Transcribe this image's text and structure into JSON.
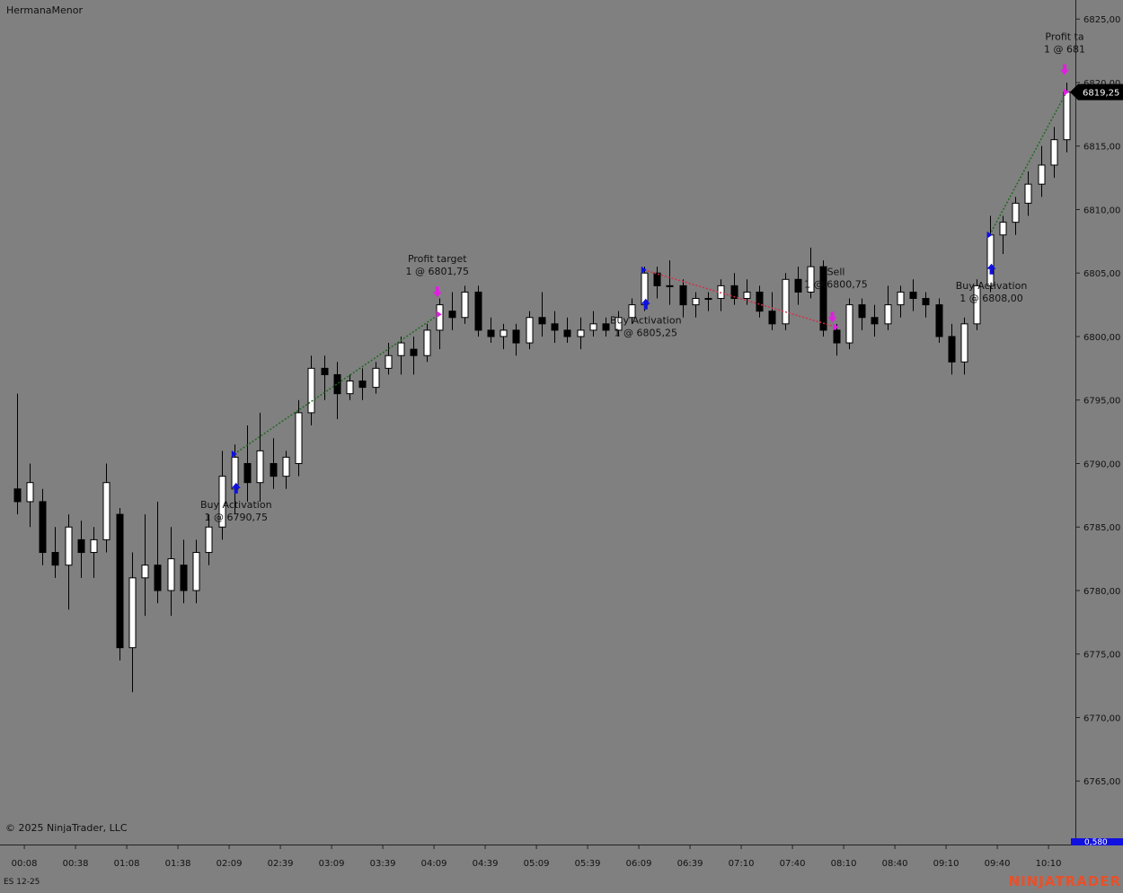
{
  "chart_data": {
    "type": "candlestick",
    "instrument_name": "HermanaMenor",
    "copyright": "© 2025 NinjaTrader, LLC",
    "contract": "ES 12-25",
    "brand": "NINJATRADER",
    "last_price": {
      "value": 6819.25,
      "label": "6819,25"
    },
    "indicator_label": "0,580",
    "up_color": "#ffffff",
    "down_color": "#000000",
    "ylim": [
      6760,
      6826.5
    ],
    "yticks": [
      {
        "value": 6765,
        "label": "6765,00"
      },
      {
        "value": 6770,
        "label": "6770,00"
      },
      {
        "value": 6775,
        "label": "6775,00"
      },
      {
        "value": 6780,
        "label": "6780,00"
      },
      {
        "value": 6785,
        "label": "6785,00"
      },
      {
        "value": 6790,
        "label": "6790,00"
      },
      {
        "value": 6795,
        "label": "6795,00"
      },
      {
        "value": 6800,
        "label": "6800,00"
      },
      {
        "value": 6805,
        "label": "6805,00"
      },
      {
        "value": 6810,
        "label": "6810,00"
      },
      {
        "value": 6815,
        "label": "6815,00"
      },
      {
        "value": 6820,
        "label": "6820,00"
      },
      {
        "value": 6825,
        "label": "6825,00"
      }
    ],
    "xlim": [
      -1.3,
      82.7
    ],
    "xticks": [
      {
        "value": 0.6,
        "label": "00:08"
      },
      {
        "value": 4.6,
        "label": "00:38"
      },
      {
        "value": 8.6,
        "label": "01:08"
      },
      {
        "value": 12.6,
        "label": "01:38"
      },
      {
        "value": 16.6,
        "label": "02:09"
      },
      {
        "value": 20.6,
        "label": "02:39"
      },
      {
        "value": 24.6,
        "label": "03:09"
      },
      {
        "value": 28.6,
        "label": "03:39"
      },
      {
        "value": 32.6,
        "label": "04:09"
      },
      {
        "value": 36.6,
        "label": "04:39"
      },
      {
        "value": 40.6,
        "label": "05:09"
      },
      {
        "value": 44.6,
        "label": "05:39"
      },
      {
        "value": 48.6,
        "label": "06:09"
      },
      {
        "value": 52.6,
        "label": "06:39"
      },
      {
        "value": 56.6,
        "label": "07:10"
      },
      {
        "value": 60.6,
        "label": "07:40"
      },
      {
        "value": 64.6,
        "label": "08:10"
      },
      {
        "value": 68.6,
        "label": "08:40"
      },
      {
        "value": 72.6,
        "label": "09:10"
      },
      {
        "value": 76.6,
        "label": "09:40"
      },
      {
        "value": 80.6,
        "label": "10:10"
      }
    ],
    "ohlc": [
      [
        6788,
        6795.5,
        6786,
        6787
      ],
      [
        6787,
        6790,
        6785,
        6788.5
      ],
      [
        6787,
        6788,
        6782,
        6783
      ],
      [
        6783,
        6785,
        6781,
        6782
      ],
      [
        6782,
        6786,
        6778.5,
        6785
      ],
      [
        6784,
        6785.5,
        6781,
        6783
      ],
      [
        6783,
        6785,
        6781,
        6784
      ],
      [
        6784,
        6790,
        6783,
        6788.5
      ],
      [
        6786,
        6786.5,
        6774.5,
        6775.5
      ],
      [
        6775.5,
        6783,
        6772,
        6781
      ],
      [
        6781,
        6786,
        6778,
        6782
      ],
      [
        6782,
        6787,
        6779,
        6780
      ],
      [
        6780,
        6785,
        6778,
        6782.5
      ],
      [
        6782,
        6784,
        6779,
        6780
      ],
      [
        6780,
        6784,
        6779,
        6783
      ],
      [
        6783,
        6786,
        6782,
        6785
      ],
      [
        6785,
        6791,
        6784,
        6789
      ],
      [
        6788,
        6791.5,
        6786,
        6790.5
      ],
      [
        6790,
        6793,
        6787,
        6788.5
      ],
      [
        6788.5,
        6794,
        6787,
        6791
      ],
      [
        6790,
        6792,
        6788,
        6789
      ],
      [
        6789,
        6791,
        6788,
        6790.5
      ],
      [
        6790,
        6795,
        6789,
        6794
      ],
      [
        6794,
        6798.5,
        6793,
        6797.5
      ],
      [
        6797.5,
        6798.5,
        6795,
        6797
      ],
      [
        6797,
        6798,
        6793.5,
        6795.5
      ],
      [
        6795.5,
        6797,
        6795,
        6796.5
      ],
      [
        6796.5,
        6797.5,
        6795,
        6796
      ],
      [
        6796,
        6798,
        6795.5,
        6797.5
      ],
      [
        6797.5,
        6799.5,
        6797,
        6798.5
      ],
      [
        6798.5,
        6800,
        6797,
        6799.5
      ],
      [
        6799,
        6800,
        6797,
        6798.5
      ],
      [
        6798.5,
        6801,
        6798,
        6800.5
      ],
      [
        6800.5,
        6803,
        6799,
        6802.5
      ],
      [
        6802,
        6803.5,
        6800.5,
        6801.5
      ],
      [
        6801.5,
        6804,
        6801,
        6803.5
      ],
      [
        6803.5,
        6804,
        6800,
        6800.5
      ],
      [
        6800.5,
        6801.5,
        6799.5,
        6800
      ],
      [
        6800,
        6801,
        6799,
        6800.5
      ],
      [
        6800.5,
        6801,
        6798.5,
        6799.5
      ],
      [
        6799.5,
        6802,
        6799,
        6801.5
      ],
      [
        6801.5,
        6803.5,
        6800,
        6801
      ],
      [
        6801,
        6802,
        6799.5,
        6800.5
      ],
      [
        6800.5,
        6801.5,
        6799.5,
        6800
      ],
      [
        6800,
        6801.5,
        6799,
        6800.5
      ],
      [
        6800.5,
        6802,
        6800,
        6801
      ],
      [
        6801,
        6801.5,
        6800,
        6800.5
      ],
      [
        6800.5,
        6802,
        6800,
        6801.5
      ],
      [
        6801.5,
        6803,
        6801,
        6802.5
      ],
      [
        6802.5,
        6805.5,
        6802,
        6805
      ],
      [
        6805,
        6805.5,
        6803,
        6804
      ],
      [
        6804,
        6806,
        6802.5,
        6804
      ],
      [
        6804,
        6804.5,
        6801.5,
        6802.5
      ],
      [
        6802.5,
        6803.5,
        6801.5,
        6803
      ],
      [
        6803,
        6803.5,
        6802,
        6803
      ],
      [
        6803,
        6804.5,
        6802,
        6804
      ],
      [
        6804,
        6805,
        6802.5,
        6803
      ],
      [
        6803,
        6804.5,
        6802.5,
        6803.5
      ],
      [
        6803.5,
        6804,
        6801.5,
        6802
      ],
      [
        6802,
        6803.5,
        6800.5,
        6801
      ],
      [
        6801,
        6805,
        6800.5,
        6804.5
      ],
      [
        6804.5,
        6805.5,
        6802.5,
        6803.5
      ],
      [
        6803.5,
        6807,
        6803,
        6805.5
      ],
      [
        6805.5,
        6806,
        6800,
        6800.5
      ],
      [
        6800.5,
        6801,
        6798.5,
        6799.5
      ],
      [
        6799.5,
        6803,
        6799,
        6802.5
      ],
      [
        6802.5,
        6803,
        6800.5,
        6801.5
      ],
      [
        6801.5,
        6802.5,
        6800,
        6801
      ],
      [
        6801,
        6804,
        6800.5,
        6802.5
      ],
      [
        6802.5,
        6804,
        6801.5,
        6803.5
      ],
      [
        6803.5,
        6804.5,
        6802,
        6803
      ],
      [
        6803,
        6803.5,
        6801.5,
        6802.5
      ],
      [
        6802.5,
        6803,
        6799.5,
        6800
      ],
      [
        6800,
        6801,
        6797,
        6798
      ],
      [
        6798,
        6801.5,
        6797,
        6801
      ],
      [
        6801,
        6804.5,
        6800.5,
        6804
      ],
      [
        6804,
        6809.5,
        6803.5,
        6808
      ],
      [
        6808,
        6809.5,
        6806.5,
        6809
      ],
      [
        6809,
        6811,
        6808,
        6810.5
      ],
      [
        6810.5,
        6813,
        6809.5,
        6812
      ],
      [
        6812,
        6815,
        6811,
        6813.5
      ],
      [
        6813.5,
        6816.5,
        6812.5,
        6815.5
      ],
      [
        6815.5,
        6820,
        6814.5,
        6819.25
      ]
    ],
    "trades": [
      {
        "color": "#1f6b1f",
        "entry": {
          "x": 17,
          "price": 6790.75,
          "lines": [
            "Buy Activation",
            "1 @ 6790,75"
          ]
        },
        "exit": {
          "x": 33,
          "price": 6801.75,
          "lines": [
            "Profit target",
            "1 @ 6801,75"
          ]
        }
      },
      {
        "color": "#d0304a",
        "entry": {
          "x": 49,
          "price": 6805.25,
          "lines": [
            "Buy Activation",
            "1 @ 6805,25"
          ]
        },
        "exit": {
          "x": 64,
          "price": 6800.75,
          "lines": [
            "Sell",
            "1 @ 6800,75"
          ]
        }
      },
      {
        "color": "#1f6b1f",
        "entry": {
          "x": 76,
          "price": 6808,
          "lines": [
            "Buy Activation",
            "1 @ 6808,00"
          ]
        },
        "exit": {
          "x": 82,
          "price": 6819.25,
          "lines": [
            "Profit ta",
            "1 @ 681"
          ]
        }
      }
    ]
  }
}
